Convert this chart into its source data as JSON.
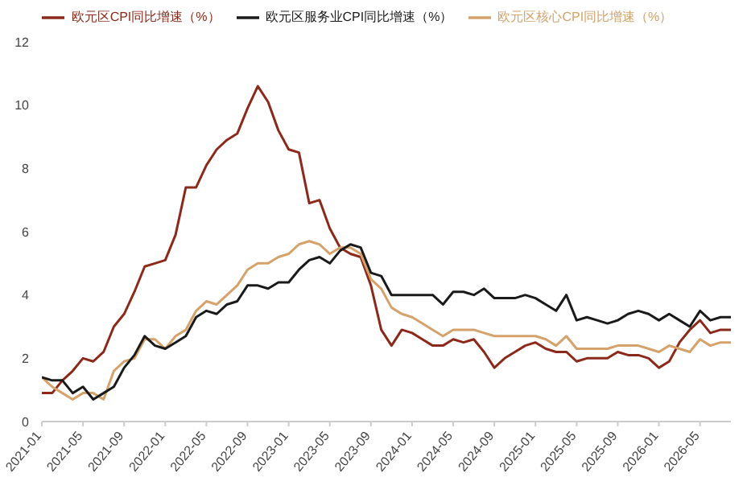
{
  "chart_data": {
    "type": "line",
    "x": [
      "2021-01",
      "2021-02",
      "2021-03",
      "2021-04",
      "2021-05",
      "2021-06",
      "2021-07",
      "2021-08",
      "2021-09",
      "2021-10",
      "2021-11",
      "2021-12",
      "2022-01",
      "2022-02",
      "2022-03",
      "2022-04",
      "2022-05",
      "2022-06",
      "2022-07",
      "2022-08",
      "2022-09",
      "2022-10",
      "2022-11",
      "2022-12",
      "2023-01",
      "2023-02",
      "2023-03",
      "2023-04",
      "2023-05",
      "2023-06",
      "2023-07",
      "2023-08",
      "2023-09",
      "2023-10",
      "2023-11",
      "2023-12",
      "2024-01",
      "2024-02",
      "2024-03",
      "2024-04",
      "2024-05",
      "2024-06",
      "2024-07",
      "2024-08",
      "2024-09",
      "2024-10",
      "2024-11",
      "2024-12",
      "2025-01",
      "2025-02",
      "2025-03",
      "2025-04",
      "2025-05",
      "2025-06",
      "2025-07",
      "2025-08",
      "2025-09",
      "2025-10",
      "2025-11",
      "2025-12",
      "2026-01",
      "2026-02",
      "2026-03",
      "2026-04",
      "2026-05",
      "2026-06",
      "2026-07",
      "2026-08"
    ],
    "series": [
      {
        "name": "欧元区CPI同比增速（%）",
        "color": "#8b2a1a",
        "values": [
          0.9,
          0.9,
          1.3,
          1.6,
          2.0,
          1.9,
          2.2,
          3.0,
          3.4,
          4.1,
          4.9,
          5.0,
          5.1,
          5.9,
          7.4,
          7.4,
          8.1,
          8.6,
          8.9,
          9.1,
          9.9,
          10.6,
          10.1,
          9.2,
          8.6,
          8.5,
          6.9,
          7.0,
          6.1,
          5.5,
          5.3,
          5.2,
          4.3,
          2.9,
          2.4,
          2.9,
          2.8,
          2.6,
          2.4,
          2.4,
          2.6,
          2.5,
          2.6,
          2.2,
          1.7,
          2.0,
          2.2,
          2.4,
          2.5,
          2.3,
          2.2,
          2.2,
          1.9,
          2.0,
          2.0,
          2.0,
          2.2,
          2.1,
          2.1,
          2.0,
          1.7,
          1.9,
          2.5,
          2.9,
          3.2,
          2.8,
          2.9,
          2.9
        ]
      },
      {
        "name": "欧元区核心CPI同比增速（%）",
        "color": "#d4a26a",
        "values": [
          1.4,
          1.1,
          0.9,
          0.7,
          0.9,
          0.9,
          0.7,
          1.6,
          1.9,
          2.0,
          2.6,
          2.6,
          2.3,
          2.7,
          2.9,
          3.5,
          3.8,
          3.7,
          4.0,
          4.3,
          4.8,
          5.0,
          5.0,
          5.2,
          5.3,
          5.6,
          5.7,
          5.6,
          5.3,
          5.5,
          5.5,
          5.3,
          4.5,
          4.2,
          3.6,
          3.4,
          3.3,
          3.1,
          2.9,
          2.7,
          2.9,
          2.9,
          2.9,
          2.8,
          2.7,
          2.7,
          2.7,
          2.7,
          2.7,
          2.6,
          2.4,
          2.7,
          2.3,
          2.3,
          2.3,
          2.3,
          2.4,
          2.4,
          2.4,
          2.3,
          2.2,
          2.4,
          2.3,
          2.2,
          2.6,
          2.4,
          2.5,
          2.5
        ]
      },
      {
        "name": "欧元区服务业CPI同比增速（%）",
        "color": "#1a1a1a",
        "values": [
          1.4,
          1.3,
          1.3,
          0.9,
          1.1,
          0.7,
          0.9,
          1.1,
          1.7,
          2.1,
          2.7,
          2.4,
          2.3,
          2.5,
          2.7,
          3.3,
          3.5,
          3.4,
          3.7,
          3.8,
          4.3,
          4.3,
          4.2,
          4.4,
          4.4,
          4.8,
          5.1,
          5.2,
          5.0,
          5.4,
          5.6,
          5.5,
          4.7,
          4.6,
          4.0,
          4.0,
          4.0,
          4.0,
          4.0,
          3.7,
          4.1,
          4.1,
          4.0,
          4.2,
          3.9,
          3.9,
          3.9,
          4.0,
          3.9,
          3.7,
          3.5,
          4.0,
          3.2,
          3.3,
          3.2,
          3.1,
          3.2,
          3.4,
          3.5,
          3.4,
          3.2,
          3.4,
          3.2,
          3.0,
          3.5,
          3.2,
          3.3,
          3.3
        ]
      }
    ],
    "xlim": [
      "2021-01",
      "2026-08"
    ],
    "xticks": [
      "2021-01",
      "2021-05",
      "2021-09",
      "2022-01",
      "2022-05",
      "2022-09",
      "2023-01",
      "2023-05",
      "2023-09",
      "2024-01",
      "2024-05",
      "2024-09",
      "2025-01",
      "2025-05",
      "2025-09",
      "2026-01",
      "2026-05"
    ],
    "ylim": [
      0,
      12
    ],
    "yticks": [
      0,
      2,
      4,
      6,
      8,
      10,
      12
    ],
    "grid": false,
    "legend": "top",
    "marker": "none",
    "line_style": "solid"
  }
}
